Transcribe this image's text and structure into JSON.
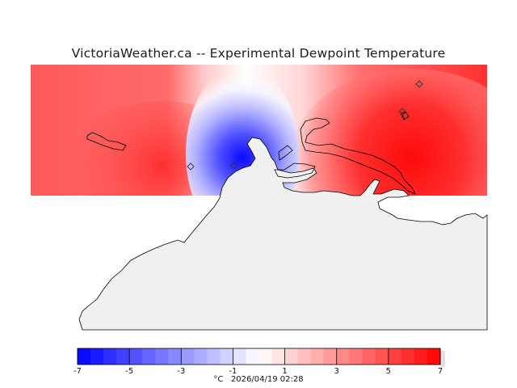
{
  "title": "VictoriaWeather.ca -- Experimental Dewpoint Temperature",
  "colorbar": {
    "min": -7,
    "max": 7,
    "steps": 28,
    "tick_values": [
      -7,
      -5,
      -3,
      -1,
      1,
      3,
      5,
      7
    ],
    "tick_labels": [
      "-7",
      "-5",
      "-3",
      "-1",
      "1",
      "3",
      "5",
      "7"
    ],
    "low_color": "#0000ff",
    "mid_color": "#ffffff",
    "high_color": "#ff0000",
    "unit": "°C",
    "timestamp": "2026/04/19 02:28"
  },
  "map": {
    "land_color": "#f0f0f0",
    "coast_color": "#000000",
    "station_count": 5
  }
}
